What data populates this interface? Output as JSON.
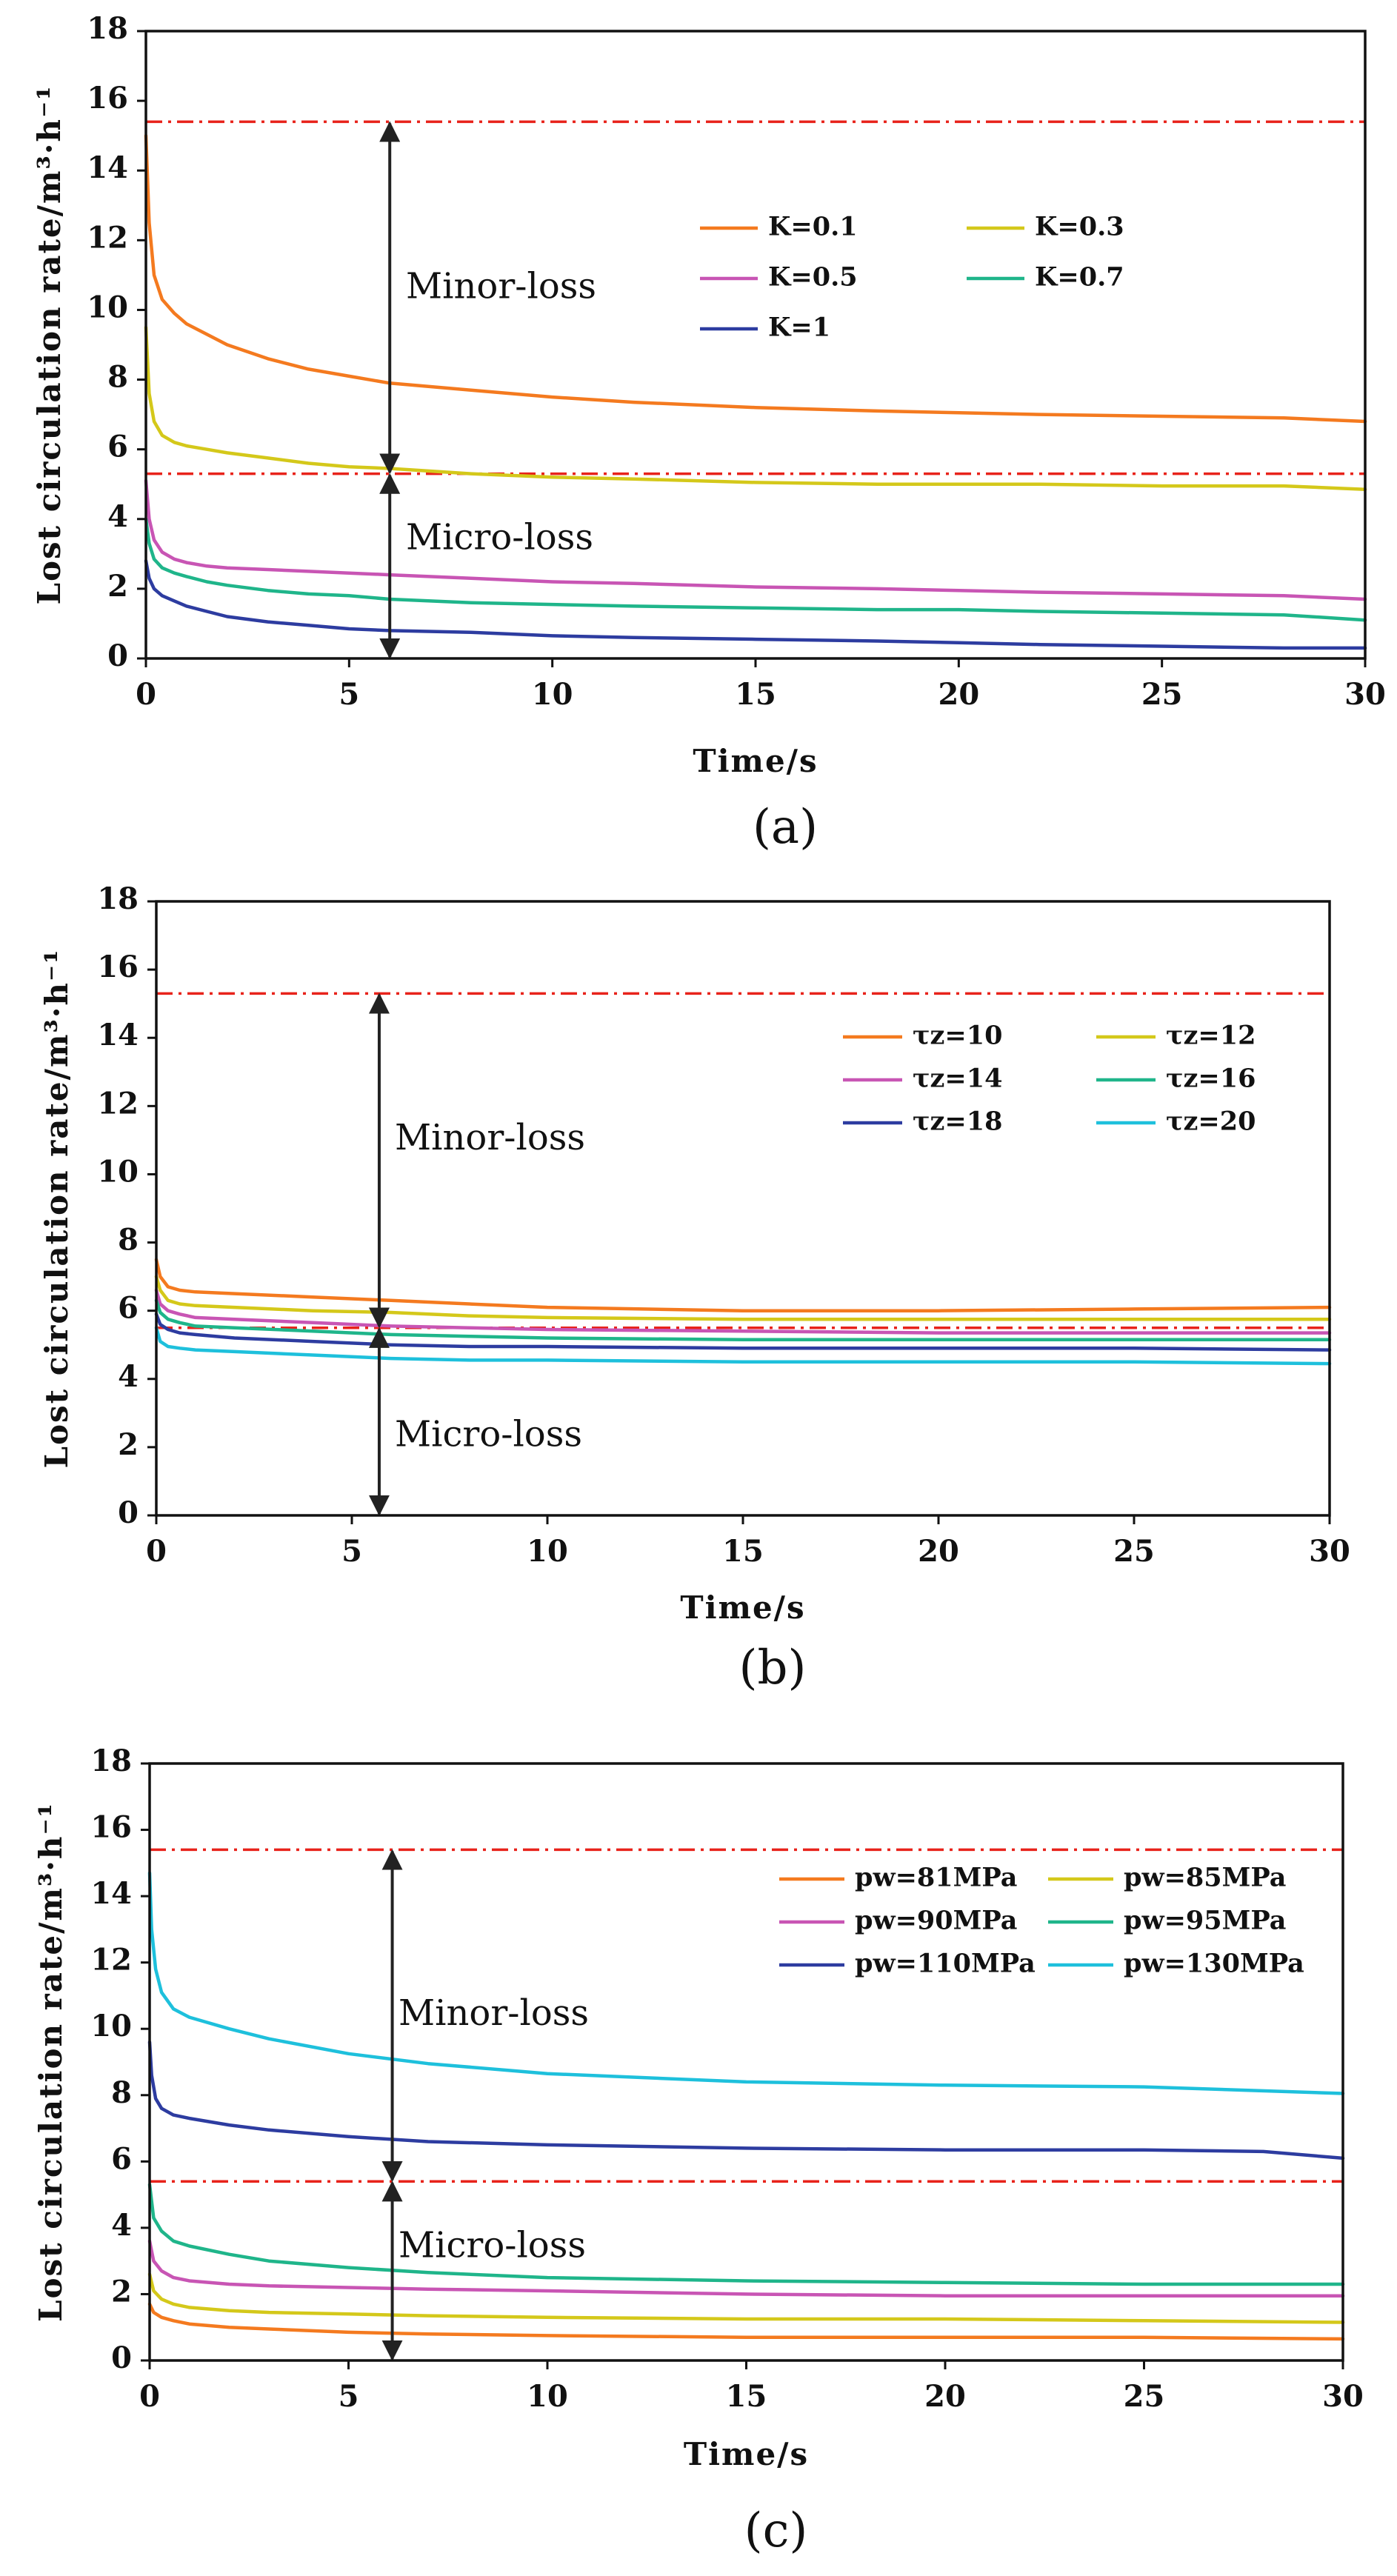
{
  "chart_data": [
    {
      "type": "line",
      "caption": "(a)",
      "xlabel": "Time/s",
      "ylabel": "Lost circulation rate/m³·h⁻¹",
      "xlim": [
        0,
        30
      ],
      "ylim": [
        0,
        18
      ],
      "xticks": [
        "0",
        "5",
        "10",
        "15",
        "20",
        "25",
        "30"
      ],
      "yticks": [
        "0",
        "2",
        "4",
        "6",
        "8",
        "10",
        "12",
        "14",
        "16",
        "18"
      ],
      "legend_position": "upper-right",
      "thresholds": [
        {
          "y": 15.4,
          "color": "#e8231b"
        },
        {
          "y": 5.3,
          "color": "#e8231b"
        }
      ],
      "zones": [
        {
          "label": "Minor-loss",
          "y_label": 10.6
        },
        {
          "label": "Micro-loss",
          "y_label": 3.4
        }
      ],
      "arrows": [
        {
          "x": 6,
          "y_top": 15.4,
          "y_bottom": 5.3
        },
        {
          "x": 6,
          "y_top": 5.3,
          "y_bottom": 0
        }
      ],
      "series": [
        {
          "name": "K=0.1",
          "color": "#f47a1f",
          "x": [
            0,
            0.08,
            0.2,
            0.4,
            0.7,
            1,
            1.5,
            2,
            3,
            4,
            5,
            6,
            8,
            10,
            12,
            15,
            18,
            20,
            22,
            25,
            28,
            30
          ],
          "y": [
            15.0,
            12.5,
            11.0,
            10.3,
            9.9,
            9.6,
            9.3,
            9.0,
            8.6,
            8.3,
            8.1,
            7.9,
            7.7,
            7.5,
            7.35,
            7.2,
            7.1,
            7.05,
            7.0,
            6.95,
            6.9,
            6.8
          ]
        },
        {
          "name": "K=0.3",
          "color": "#d4c81a",
          "x": [
            0,
            0.08,
            0.2,
            0.4,
            0.7,
            1,
            1.5,
            2,
            3,
            4,
            5,
            6,
            8,
            10,
            12,
            15,
            18,
            20,
            22,
            25,
            28,
            30
          ],
          "y": [
            9.5,
            7.6,
            6.8,
            6.4,
            6.2,
            6.1,
            6.0,
            5.9,
            5.75,
            5.6,
            5.5,
            5.45,
            5.3,
            5.2,
            5.15,
            5.05,
            5.0,
            5.0,
            5.0,
            4.95,
            4.95,
            4.85
          ]
        },
        {
          "name": "K=0.5",
          "color": "#c855b4",
          "x": [
            0,
            0.08,
            0.2,
            0.4,
            0.7,
            1,
            1.5,
            2,
            3,
            4,
            5,
            6,
            8,
            10,
            12,
            15,
            18,
            20,
            22,
            25,
            28,
            30
          ],
          "y": [
            5.1,
            4.0,
            3.4,
            3.05,
            2.85,
            2.75,
            2.65,
            2.6,
            2.55,
            2.5,
            2.45,
            2.4,
            2.3,
            2.2,
            2.15,
            2.05,
            2.0,
            1.95,
            1.9,
            1.85,
            1.8,
            1.7
          ]
        },
        {
          "name": "K=0.7",
          "color": "#1fb58a",
          "x": [
            0,
            0.08,
            0.2,
            0.4,
            0.7,
            1,
            1.5,
            2,
            3,
            4,
            5,
            6,
            8,
            10,
            12,
            15,
            18,
            20,
            22,
            25,
            28,
            30
          ],
          "y": [
            4.0,
            3.3,
            2.85,
            2.6,
            2.45,
            2.35,
            2.2,
            2.1,
            1.95,
            1.85,
            1.8,
            1.7,
            1.6,
            1.55,
            1.5,
            1.45,
            1.4,
            1.4,
            1.35,
            1.3,
            1.25,
            1.1
          ]
        },
        {
          "name": "K=1",
          "color": "#2d3ca0",
          "x": [
            0,
            0.08,
            0.2,
            0.4,
            0.7,
            1,
            1.5,
            2,
            3,
            4,
            5,
            6,
            8,
            10,
            12,
            15,
            18,
            20,
            22,
            25,
            28,
            30
          ],
          "y": [
            2.8,
            2.3,
            2.0,
            1.8,
            1.65,
            1.5,
            1.35,
            1.2,
            1.05,
            0.95,
            0.85,
            0.8,
            0.75,
            0.65,
            0.6,
            0.55,
            0.5,
            0.45,
            0.4,
            0.35,
            0.3,
            0.3
          ]
        }
      ]
    },
    {
      "type": "line",
      "caption": "(b)",
      "xlabel": "Time/s",
      "ylabel": "Lost circulation rate/m³·h⁻¹",
      "xlim": [
        0,
        30
      ],
      "ylim": [
        0,
        18
      ],
      "xticks": [
        "0",
        "5",
        "10",
        "15",
        "20",
        "25",
        "30"
      ],
      "yticks": [
        "0",
        "2",
        "4",
        "6",
        "8",
        "10",
        "12",
        "14",
        "16",
        "18"
      ],
      "legend_position": "upper-right",
      "thresholds": [
        {
          "y": 15.3,
          "color": "#e8231b"
        },
        {
          "y": 5.5,
          "color": "#e8231b"
        }
      ],
      "zones": [
        {
          "label": "Minor-loss",
          "y_label": 11.0
        },
        {
          "label": "Micro-loss",
          "y_label": 2.3
        }
      ],
      "arrows": [
        {
          "x": 5.7,
          "y_top": 15.3,
          "y_bottom": 5.5
        },
        {
          "x": 5.7,
          "y_top": 5.5,
          "y_bottom": 0
        }
      ],
      "series": [
        {
          "name": "τz=10",
          "color": "#f47a1f",
          "x": [
            0,
            0.1,
            0.3,
            0.6,
            1,
            2,
            4,
            6,
            8,
            10,
            15,
            20,
            25,
            30
          ],
          "y": [
            7.5,
            7.0,
            6.7,
            6.6,
            6.55,
            6.5,
            6.4,
            6.3,
            6.2,
            6.1,
            6.0,
            6.0,
            6.05,
            6.1
          ]
        },
        {
          "name": "τz=12",
          "color": "#d4c81a",
          "x": [
            0,
            0.1,
            0.3,
            0.6,
            1,
            2,
            4,
            6,
            8,
            10,
            15,
            20,
            25,
            30
          ],
          "y": [
            7.0,
            6.6,
            6.3,
            6.2,
            6.15,
            6.1,
            6.0,
            5.95,
            5.85,
            5.8,
            5.75,
            5.75,
            5.75,
            5.75
          ]
        },
        {
          "name": "τz=14",
          "color": "#c855b4",
          "x": [
            0,
            0.1,
            0.3,
            0.6,
            1,
            2,
            4,
            6,
            8,
            10,
            15,
            20,
            25,
            30
          ],
          "y": [
            6.6,
            6.2,
            6.0,
            5.9,
            5.8,
            5.75,
            5.65,
            5.55,
            5.5,
            5.45,
            5.4,
            5.35,
            5.35,
            5.35
          ]
        },
        {
          "name": "τz=16",
          "color": "#1fb58a",
          "x": [
            0,
            0.1,
            0.3,
            0.6,
            1,
            2,
            4,
            6,
            8,
            10,
            15,
            20,
            25,
            30
          ],
          "y": [
            6.3,
            5.95,
            5.75,
            5.65,
            5.55,
            5.5,
            5.4,
            5.3,
            5.25,
            5.2,
            5.15,
            5.15,
            5.15,
            5.15
          ]
        },
        {
          "name": "τz=18",
          "color": "#2d3ca0",
          "x": [
            0,
            0.1,
            0.3,
            0.6,
            1,
            2,
            4,
            6,
            8,
            10,
            15,
            20,
            25,
            30
          ],
          "y": [
            5.9,
            5.6,
            5.45,
            5.35,
            5.3,
            5.2,
            5.1,
            5.0,
            4.95,
            4.95,
            4.9,
            4.9,
            4.9,
            4.85
          ]
        },
        {
          "name": "τz=20",
          "color": "#1ec0dc",
          "x": [
            0,
            0.1,
            0.3,
            0.6,
            1,
            2,
            4,
            6,
            8,
            10,
            15,
            20,
            25,
            30
          ],
          "y": [
            5.5,
            5.1,
            4.95,
            4.9,
            4.85,
            4.8,
            4.7,
            4.6,
            4.55,
            4.55,
            4.5,
            4.5,
            4.5,
            4.45
          ]
        }
      ]
    },
    {
      "type": "line",
      "caption": "(c)",
      "xlabel": "Time/s",
      "ylabel": "Lost circulation rate/m³·h⁻¹",
      "xlim": [
        0,
        30
      ],
      "ylim": [
        0,
        18
      ],
      "xticks": [
        "0",
        "5",
        "10",
        "15",
        "20",
        "25",
        "30"
      ],
      "yticks": [
        "0",
        "2",
        "4",
        "6",
        "8",
        "10",
        "12",
        "14",
        "16",
        "18"
      ],
      "legend_position": "upper-right",
      "thresholds": [
        {
          "y": 15.4,
          "color": "#e8231b"
        },
        {
          "y": 5.4,
          "color": "#e8231b"
        }
      ],
      "zones": [
        {
          "label": "Minor-loss",
          "y_label": 10.4
        },
        {
          "label": "Micro-loss",
          "y_label": 3.4
        }
      ],
      "arrows": [
        {
          "x": 6.1,
          "y_top": 15.4,
          "y_bottom": 5.4
        },
        {
          "x": 6.1,
          "y_top": 5.4,
          "y_bottom": 0
        }
      ],
      "series": [
        {
          "name": "pw=81MPa",
          "color": "#f47a1f",
          "x": [
            0,
            0.1,
            0.3,
            0.6,
            1,
            2,
            3,
            5,
            7,
            10,
            15,
            20,
            25,
            30
          ],
          "y": [
            1.7,
            1.45,
            1.3,
            1.2,
            1.1,
            1.0,
            0.95,
            0.85,
            0.8,
            0.75,
            0.7,
            0.7,
            0.7,
            0.65
          ]
        },
        {
          "name": "pw=85MPa",
          "color": "#d4c81a",
          "x": [
            0,
            0.1,
            0.3,
            0.6,
            1,
            2,
            3,
            5,
            7,
            10,
            15,
            20,
            25,
            30
          ],
          "y": [
            2.6,
            2.1,
            1.85,
            1.7,
            1.6,
            1.5,
            1.45,
            1.4,
            1.35,
            1.3,
            1.25,
            1.25,
            1.2,
            1.15
          ]
        },
        {
          "name": "pw=90MPa",
          "color": "#c855b4",
          "x": [
            0,
            0.1,
            0.3,
            0.6,
            1,
            2,
            3,
            5,
            7,
            10,
            15,
            20,
            25,
            30
          ],
          "y": [
            3.6,
            3.0,
            2.7,
            2.5,
            2.4,
            2.3,
            2.25,
            2.2,
            2.15,
            2.1,
            2.0,
            1.95,
            1.95,
            1.95
          ]
        },
        {
          "name": "pw=95MPa",
          "color": "#1fb58a",
          "x": [
            0,
            0.1,
            0.3,
            0.6,
            1,
            2,
            3,
            5,
            7,
            10,
            15,
            20,
            25,
            30
          ],
          "y": [
            5.3,
            4.3,
            3.9,
            3.6,
            3.45,
            3.2,
            3.0,
            2.8,
            2.65,
            2.5,
            2.4,
            2.35,
            2.3,
            2.3
          ]
        },
        {
          "name": "pw=110MPa",
          "color": "#2d3ca0",
          "x": [
            0,
            0.05,
            0.15,
            0.3,
            0.6,
            1,
            2,
            3,
            5,
            7,
            10,
            15,
            20,
            25,
            28,
            30
          ],
          "y": [
            9.6,
            8.6,
            7.9,
            7.6,
            7.4,
            7.3,
            7.1,
            6.95,
            6.75,
            6.6,
            6.5,
            6.4,
            6.35,
            6.35,
            6.3,
            6.1
          ]
        },
        {
          "name": "pw=130MPa",
          "color": "#1ec0dc",
          "x": [
            0,
            0.05,
            0.15,
            0.3,
            0.6,
            1,
            2,
            3,
            5,
            7,
            10,
            15,
            20,
            25,
            30
          ],
          "y": [
            14.7,
            13.0,
            11.8,
            11.1,
            10.6,
            10.35,
            10.0,
            9.7,
            9.25,
            8.95,
            8.65,
            8.4,
            8.3,
            8.25,
            8.05
          ]
        }
      ]
    }
  ]
}
